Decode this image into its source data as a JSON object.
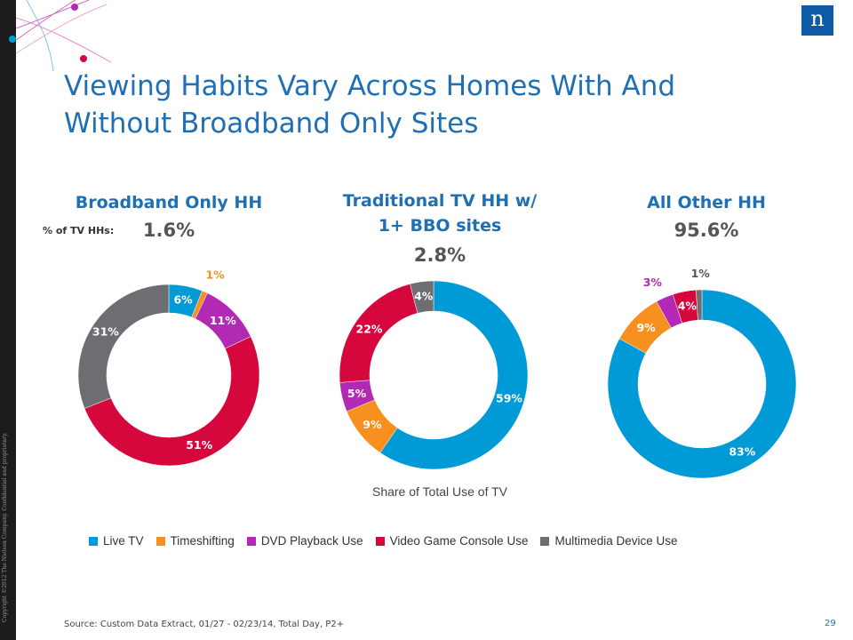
{
  "title": "Viewing Habits Vary Across Homes With And Without Broadband Only Sites",
  "copyright": "Copyright ©2012 The Nielsen Company. Confidential and proprietary.",
  "logo_letter": "n",
  "share_label": "% of TV HHs:",
  "subtitle": "Share of Total Use of TV",
  "source": "Source:  Custom Data Extract, 01/27 - 02/23/14, Total Day, P2+",
  "page_number": "29",
  "colors": {
    "Live TV": "#009ad7",
    "Timeshifting": "#f7901e",
    "DVD Playback Use": "#b22ab4",
    "Video Game Console Use": "#d6073c",
    "Multimedia Device Use": "#6d6e71",
    "title": "#1f6fb5"
  },
  "chart_data": [
    {
      "type": "pie",
      "title": "Broadband Only HH",
      "share": "1.6%",
      "categories": [
        "Live TV",
        "Timeshifting",
        "DVD Playback Use",
        "Video Game Console Use",
        "Multimedia Device Use"
      ],
      "values": [
        6,
        1,
        11,
        51,
        31
      ],
      "labels": [
        "6%",
        "1%",
        "11%",
        "51%",
        "31%"
      ]
    },
    {
      "type": "pie",
      "title": "Traditional TV HH w/ 1+ BBO sites",
      "share": "2.8%",
      "categories": [
        "Live TV",
        "Timeshifting",
        "DVD Playback Use",
        "Video Game Console Use",
        "Multimedia Device Use"
      ],
      "values": [
        59,
        9,
        5,
        22,
        4
      ],
      "labels": [
        "59%",
        "9%",
        "5%",
        "22%",
        "4%"
      ]
    },
    {
      "type": "pie",
      "title": "All Other HH",
      "share": "95.6%",
      "categories": [
        "Live TV",
        "Timeshifting",
        "DVD Playback Use",
        "Video Game Console Use",
        "Multimedia Device Use"
      ],
      "values": [
        83,
        9,
        3,
        4,
        1
      ],
      "labels": [
        "83%",
        "9%",
        "3%",
        "4%",
        "1%"
      ]
    }
  ],
  "legend": [
    "Live TV",
    "Timeshifting",
    "DVD Playback Use",
    "Video Game Console Use",
    "Multimedia Device Use"
  ]
}
